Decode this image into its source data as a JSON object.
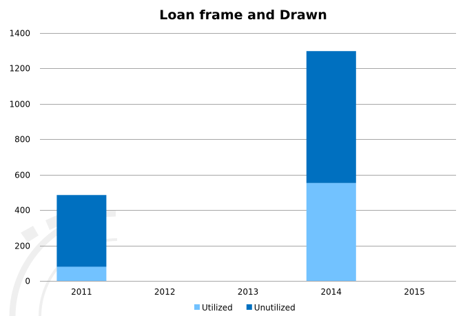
{
  "chart_data": {
    "type": "bar",
    "stacked": true,
    "title": "Loan frame and Drawn",
    "categories": [
      "2011",
      "2012",
      "2013",
      "2014",
      "2015"
    ],
    "series": [
      {
        "name": "Utilized",
        "values": [
          80,
          0,
          0,
          553,
          0
        ],
        "color": "#72c2ff"
      },
      {
        "name": "Unutilized",
        "values": [
          405,
          0,
          0,
          745,
          0
        ],
        "color": "#0070c0"
      }
    ],
    "ylim": [
      0,
      1400
    ],
    "yticks": [
      0,
      200,
      400,
      600,
      800,
      1000,
      1200,
      1400
    ],
    "grid": true,
    "legend": "bottom",
    "colors": {
      "grid": "#a6a6a6",
      "watermark": "#d9d9d9"
    }
  }
}
